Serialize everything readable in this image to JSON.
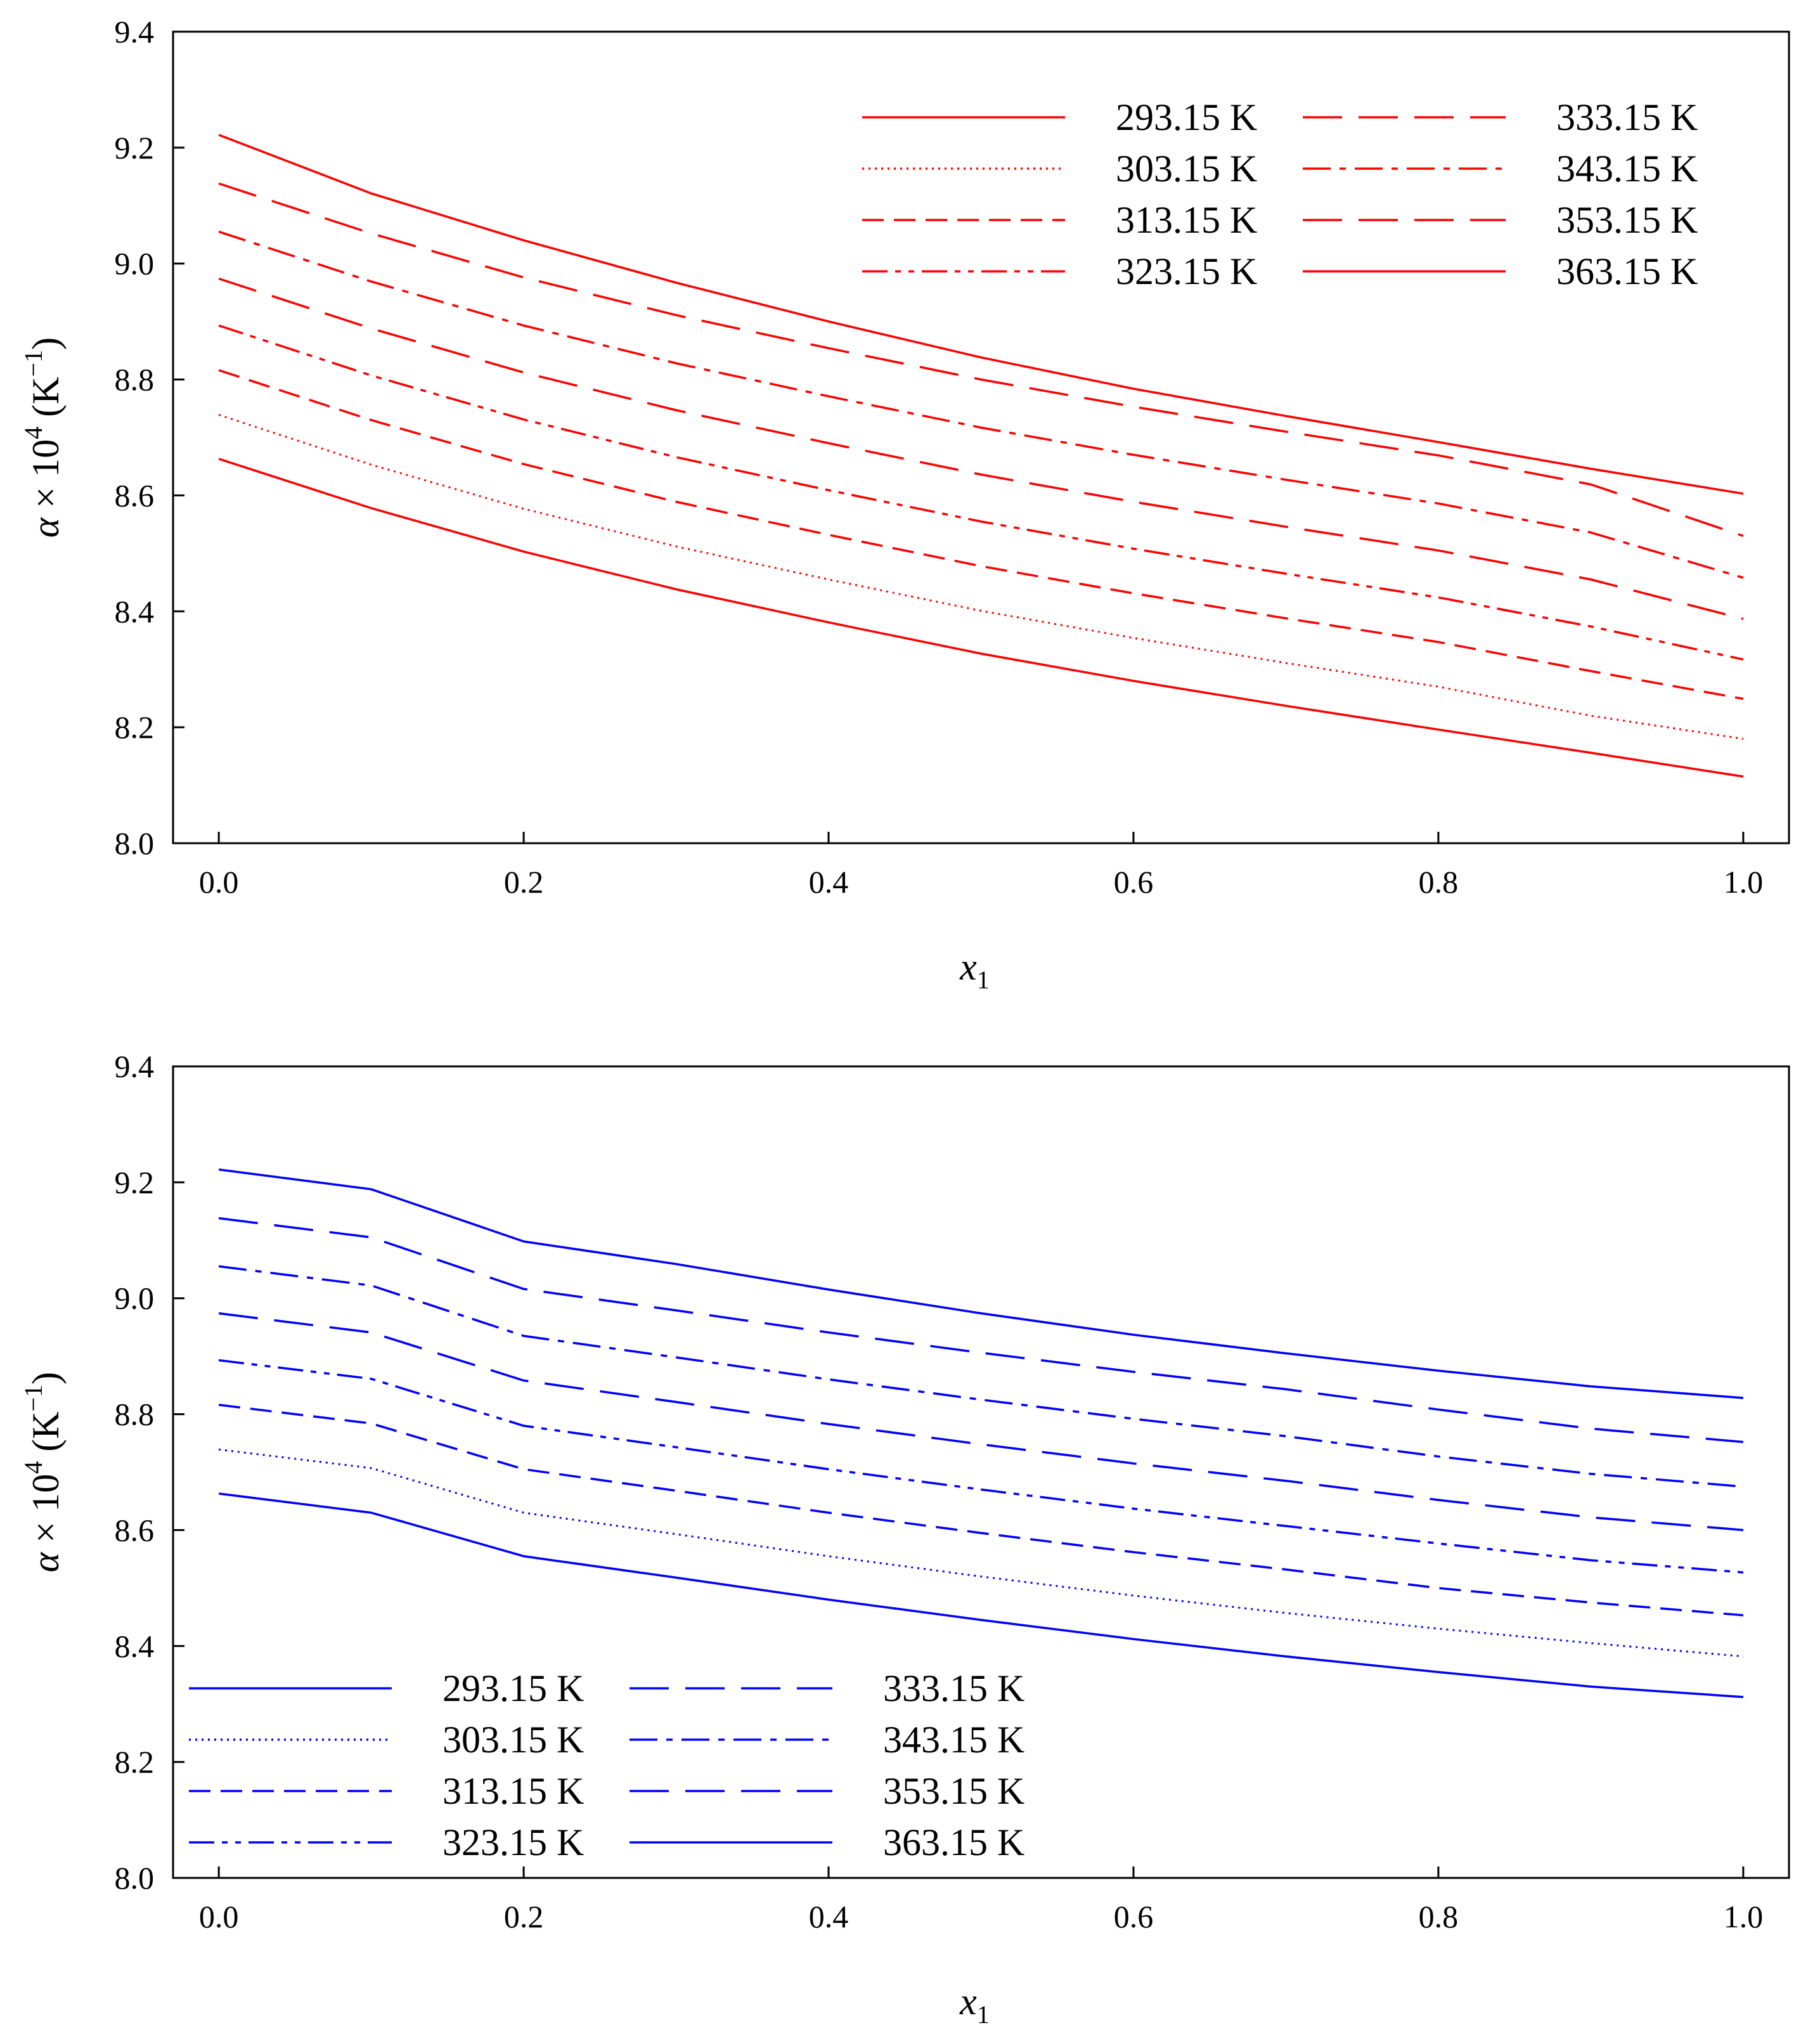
{
  "chart_data": [
    {
      "type": "line",
      "title": "",
      "xlabel": "x1",
      "ylabel": "α × 10^4 (K^−1)",
      "xlim": [
        -0.03,
        1.03
      ],
      "ylim": [
        8.0,
        9.4
      ],
      "x_ticks": [
        "0.0",
        "0.2",
        "0.4",
        "0.6",
        "0.8",
        "1.0"
      ],
      "y_ticks": [
        "8.0",
        "8.2",
        "8.4",
        "8.6",
        "8.8",
        "9.0",
        "9.2",
        "9.4"
      ],
      "grid": false,
      "legend_position": "top-right",
      "color": "#ff0000",
      "x": [
        0.0,
        0.1,
        0.2,
        0.3,
        0.4,
        0.5,
        0.6,
        0.7,
        0.8,
        0.9,
        1.0
      ],
      "series": [
        {
          "name": "293.15 K",
          "dash": "solid",
          "values": [
            8.663,
            8.578,
            8.503,
            8.438,
            8.381,
            8.327,
            8.28,
            8.237,
            8.196,
            8.156,
            8.115
          ]
        },
        {
          "name": "303.15 K",
          "dash": "dotted",
          "values": [
            8.739,
            8.653,
            8.577,
            8.512,
            8.455,
            8.401,
            8.354,
            8.311,
            8.27,
            8.22,
            8.18
          ]
        },
        {
          "name": "313.15 K",
          "dash": "dashed",
          "values": [
            8.816,
            8.73,
            8.654,
            8.589,
            8.532,
            8.478,
            8.431,
            8.388,
            8.347,
            8.297,
            8.249
          ]
        },
        {
          "name": "323.15 K",
          "dash": "dash-dot-dot",
          "values": [
            8.893,
            8.807,
            8.731,
            8.666,
            8.609,
            8.555,
            8.508,
            8.465,
            8.424,
            8.374,
            8.317
          ]
        },
        {
          "name": "333.15 K",
          "dash": "long-dash",
          "values": [
            8.974,
            8.888,
            8.812,
            8.747,
            8.69,
            8.636,
            8.589,
            8.546,
            8.505,
            8.455,
            8.387
          ]
        },
        {
          "name": "343.15 K",
          "dash": "dash-dot",
          "values": [
            9.055,
            8.969,
            8.893,
            8.828,
            8.771,
            8.717,
            8.67,
            8.627,
            8.586,
            8.536,
            8.458
          ]
        },
        {
          "name": "353.15 K",
          "dash": "long-dash",
          "values": [
            9.138,
            9.052,
            8.976,
            8.911,
            8.854,
            8.8,
            8.753,
            8.71,
            8.669,
            8.619,
            8.53
          ]
        },
        {
          "name": "363.15 K",
          "dash": "solid",
          "values": [
            9.222,
            9.121,
            9.04,
            8.967,
            8.9,
            8.838,
            8.784,
            8.737,
            8.692,
            8.646,
            8.603
          ]
        }
      ]
    },
    {
      "type": "line",
      "title": "",
      "xlabel": "x1",
      "ylabel": "α × 10^4 (K^−1)",
      "xlim": [
        -0.03,
        1.03
      ],
      "ylim": [
        8.0,
        9.4
      ],
      "x_ticks": [
        "0.0",
        "0.2",
        "0.4",
        "0.6",
        "0.8",
        "1.0"
      ],
      "y_ticks": [
        "8.0",
        "8.2",
        "8.4",
        "8.6",
        "8.8",
        "9.0",
        "9.2",
        "9.4"
      ],
      "grid": false,
      "legend_position": "bottom-left",
      "color": "#0000ff",
      "x": [
        0.0,
        0.1,
        0.2,
        0.3,
        0.4,
        0.5,
        0.6,
        0.7,
        0.8,
        0.9,
        1.0
      ],
      "series": [
        {
          "name": "293.15 K",
          "dash": "solid",
          "values": [
            8.663,
            8.63,
            8.555,
            8.518,
            8.48,
            8.445,
            8.412,
            8.382,
            8.355,
            8.33,
            8.312
          ]
        },
        {
          "name": "303.15 K",
          "dash": "dotted",
          "values": [
            8.739,
            8.707,
            8.63,
            8.593,
            8.555,
            8.52,
            8.487,
            8.457,
            8.43,
            8.405,
            8.382
          ]
        },
        {
          "name": "313.15 K",
          "dash": "dashed",
          "values": [
            8.816,
            8.784,
            8.705,
            8.668,
            8.63,
            8.595,
            8.562,
            8.532,
            8.5,
            8.475,
            8.453
          ]
        },
        {
          "name": "323.15 K",
          "dash": "dash-dot-dot",
          "values": [
            8.893,
            8.861,
            8.78,
            8.743,
            8.705,
            8.67,
            8.637,
            8.607,
            8.577,
            8.548,
            8.527
          ]
        },
        {
          "name": "333.15 K",
          "dash": "long-dash",
          "values": [
            8.974,
            8.941,
            8.858,
            8.821,
            8.783,
            8.748,
            8.715,
            8.685,
            8.652,
            8.622,
            8.6
          ]
        },
        {
          "name": "343.15 K",
          "dash": "dash-dot",
          "values": [
            9.055,
            9.022,
            8.935,
            8.898,
            8.86,
            8.825,
            8.792,
            8.762,
            8.727,
            8.697,
            8.675
          ]
        },
        {
          "name": "353.15 K",
          "dash": "long-dash",
          "values": [
            9.138,
            9.105,
            9.016,
            8.979,
            8.941,
            8.906,
            8.873,
            8.843,
            8.808,
            8.775,
            8.752
          ]
        },
        {
          "name": "363.15 K",
          "dash": "solid",
          "values": [
            9.222,
            9.188,
            9.098,
            9.059,
            9.015,
            8.974,
            8.937,
            8.905,
            8.875,
            8.848,
            8.828
          ]
        }
      ]
    }
  ]
}
